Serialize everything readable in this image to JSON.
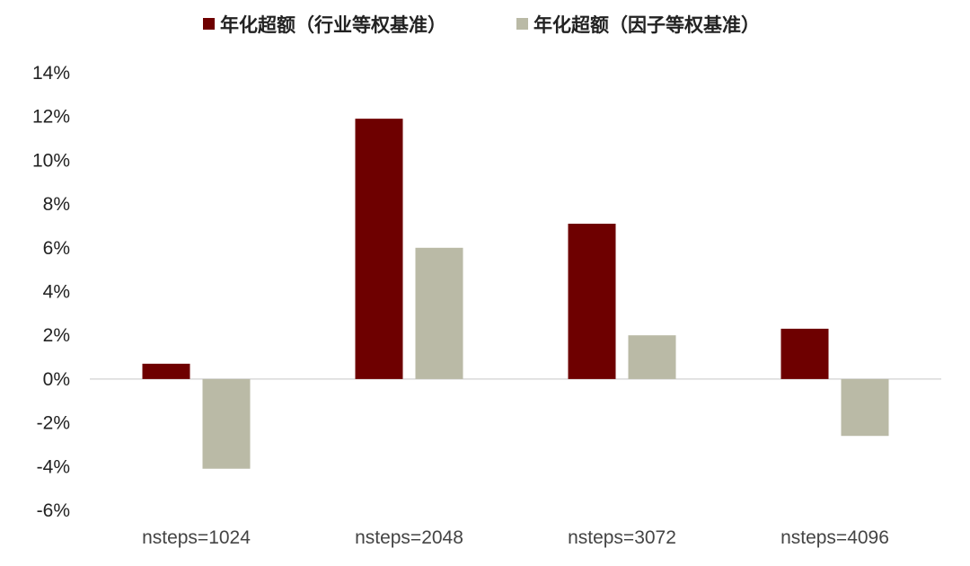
{
  "chart_data": {
    "type": "bar",
    "categories": [
      "nsteps=1024",
      "nsteps=2048",
      "nsteps=3072",
      "nsteps=4096"
    ],
    "series": [
      {
        "name": "年化超额（行业等权基准）",
        "color": "#6e0000",
        "values": [
          0.7,
          11.9,
          7.1,
          2.3
        ]
      },
      {
        "name": "年化超额（因子等权基准）",
        "color": "#babaa6",
        "values": [
          -4.1,
          6.0,
          2.0,
          -2.6
        ]
      }
    ],
    "y_ticks": [
      "14%",
      "12%",
      "10%",
      "8%",
      "6%",
      "4%",
      "2%",
      "0%",
      "-2%",
      "-4%",
      "-6%"
    ],
    "ylim": [
      -6,
      14
    ],
    "y_tick_step": 2,
    "y_unit": "%",
    "grid": false,
    "legend_position": "top",
    "title": "",
    "xlabel": "",
    "ylabel": ""
  }
}
